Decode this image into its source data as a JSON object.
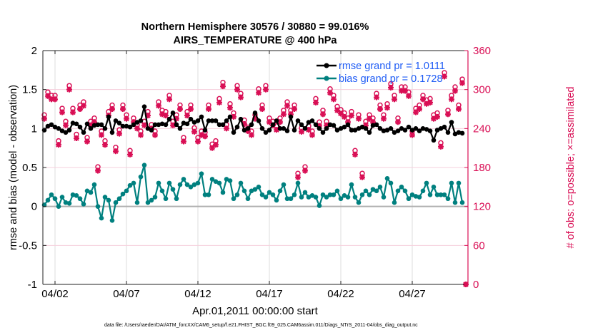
{
  "chart_data": {
    "type": "line",
    "title": [
      "Northern Hemisphere 30576 / 30880 = 99.016%",
      "AIRS_TEMPERATURE @ 400 hPa"
    ],
    "ylabel": "rmse and bias (model - observation)",
    "y2label": "# of obs: o=possible; ×=assimilated",
    "xlabel": "Apr.01,2011 00:00:00 start",
    "footer": "data file: /Users/raeder/DAI/ATM_forcXX/CAM6_setup/f.e21.FHIST_BGC.f09_025.CAM6assim.011/Diags_NTrS_2011-04/obs_diag_output.nc",
    "ylim": [
      -1,
      2
    ],
    "y2lim": [
      0,
      360
    ],
    "xlim_days": [
      0.15,
      29.9
    ],
    "yticks": [
      "-1",
      "-0.5",
      "0",
      "0.5",
      "1",
      "1.5",
      "2"
    ],
    "ytick_values": [
      -1,
      -0.5,
      0,
      0.5,
      1,
      1.5,
      2
    ],
    "y2ticks": [
      "0",
      "60",
      "120",
      "180",
      "240",
      "300",
      "360"
    ],
    "y2tick_values": [
      0,
      60,
      120,
      180,
      240,
      300,
      360
    ],
    "xticks": [
      "04/02",
      "04/07",
      "04/12",
      "04/17",
      "04/22",
      "04/27"
    ],
    "xtick_days": [
      1,
      6,
      11,
      16,
      21,
      26
    ],
    "time_step_days": 0.25,
    "legend": {
      "position": "top-right",
      "entries": [
        "rmse grand pr = 1.0111",
        "bias grand pr = 0.1728"
      ]
    },
    "colors": {
      "rmse": "#000000",
      "bias": "#00807f",
      "obs": "#d90f55",
      "legend_text": "#1f5cf5"
    },
    "series": [
      {
        "name": "rmse",
        "values": [
          0.98,
          1.03,
          1.05,
          1.02,
          1.0,
          0.97,
          0.95,
          0.98,
          1.07,
          1.06,
          1.02,
          0.95,
          1.06,
          1.0,
          1.04,
          1.05,
          1.05,
          1.0,
          1.15,
          0.95,
          1.1,
          1.07,
          1.03,
          1.03,
          1.02,
          1.05,
          1.08,
          1.1,
          1.28,
          1.0,
          0.98,
          1.05,
          1.05,
          1.06,
          1.05,
          1.12,
          1.2,
          1.05,
          1.0,
          1.07,
          1.06,
          1.12,
          1.08,
          1.1,
          1.15,
          0.98,
          1.1,
          1.1,
          1.1,
          1.05,
          1.05,
          1.1,
          1.15,
          0.95,
          1.02,
          1.12,
          0.98,
          1.0,
          1.05,
          1.2,
          1.1,
          1.0,
          0.95,
          0.98,
          1.05,
          1.1,
          1.0,
          1.0,
          0.97,
          1.15,
          0.98,
          1.1,
          1.05,
          1.0,
          1.08,
          1.1,
          1.05,
          1.0,
          0.95,
          1.0,
          1.05,
          1.04,
          0.98,
          1.0,
          1.02,
          1.05,
          0.98,
          0.98,
          1.0,
          1.02,
          1.0,
          0.95,
          1.04,
          1.05,
          1.0,
          0.97,
          0.98,
          1.0,
          0.95,
          0.97,
          1.0,
          0.98,
          1.02,
          0.98,
          1.0,
          0.97,
          1.0,
          0.99,
          0.97,
          0.85,
          0.98,
          1.0,
          1.02,
          0.95,
          1.08,
          0.93,
          0.95,
          0.94
        ]
      },
      {
        "name": "bias",
        "values": [
          0.02,
          0.08,
          0.15,
          0.1,
          0.0,
          0.12,
          0.05,
          0.04,
          0.15,
          0.14,
          0.1,
          0.03,
          0.2,
          0.18,
          0.28,
          0.0,
          -0.15,
          0.12,
          0.08,
          -0.18,
          0.05,
          0.1,
          0.16,
          0.2,
          0.27,
          0.3,
          0.05,
          0.38,
          0.53,
          0.05,
          0.08,
          0.12,
          0.3,
          0.2,
          0.1,
          0.3,
          0.22,
          0.1,
          0.28,
          0.35,
          0.28,
          0.25,
          0.28,
          0.3,
          0.42,
          0.15,
          0.15,
          0.35,
          0.32,
          0.3,
          0.18,
          0.35,
          0.33,
          0.1,
          0.15,
          0.3,
          0.2,
          0.1,
          0.2,
          0.22,
          0.25,
          0.15,
          0.12,
          0.18,
          0.15,
          0.08,
          0.2,
          0.28,
          0.1,
          0.1,
          0.15,
          0.3,
          0.12,
          0.18,
          0.12,
          0.14,
          0.12,
          0.01,
          0.15,
          0.12,
          0.15,
          0.15,
          0.2,
          0.1,
          0.14,
          0.12,
          0.28,
          0.12,
          0.05,
          0.15,
          0.2,
          0.15,
          0.22,
          0.2,
          0.25,
          0.12,
          0.36,
          0.3,
          0.05,
          0.2,
          0.25,
          0.2,
          0.1,
          0.15,
          0.13,
          0.12,
          0.2,
          0.3,
          0.15,
          0.25,
          0.15,
          0.15,
          0.15,
          0.1,
          0.3,
          0.05,
          0.3,
          0.05
        ]
      },
      {
        "name": "nobs_possible",
        "axis": "right",
        "values": [
          261,
          296,
          291,
          291,
          221,
          271,
          251,
          306,
          271,
          231,
          276,
          281,
          226,
          251,
          256,
          181,
          236,
          221,
          266,
          276,
          211,
          238,
          276,
          261,
          206,
          256,
          246,
          236,
          251,
          266,
          246,
          236,
          281,
          268,
          266,
          291,
          251,
          261,
          276,
          226,
          266,
          276,
          241,
          226,
          236,
          234,
          276,
          216,
          221,
          286,
          311,
          246,
          278,
          264,
          306,
          294,
          253,
          242,
          236,
          261,
          301,
          276,
          306,
          256,
          251,
          244,
          256,
          268,
          281,
          268,
          276,
          171,
          241,
          181,
          244,
          236,
          286,
          250,
          268,
          251,
          301,
          291,
          274,
          269,
          264,
          256,
          266,
          206,
          261,
          171,
          251,
          261,
          256,
          294,
          276,
          261,
          278,
          309,
          291,
          256,
          304,
          304,
          296,
          236,
          271,
          276,
          291,
          284,
          286,
          261,
          264,
          218,
          326,
          268,
          291,
          304,
          276,
          316,
          0
        ]
      },
      {
        "name": "nobs_assimilated",
        "axis": "right",
        "values": [
          255,
          290,
          285,
          285,
          215,
          265,
          245,
          300,
          265,
          225,
          270,
          275,
          220,
          245,
          250,
          175,
          230,
          215,
          260,
          270,
          205,
          232,
          270,
          255,
          200,
          250,
          240,
          230,
          245,
          260,
          240,
          230,
          275,
          262,
          260,
          285,
          245,
          255,
          270,
          220,
          260,
          270,
          235,
          220,
          230,
          228,
          270,
          210,
          215,
          280,
          305,
          240,
          272,
          258,
          300,
          288,
          247,
          236,
          230,
          255,
          295,
          270,
          300,
          250,
          245,
          238,
          250,
          262,
          275,
          262,
          270,
          165,
          235,
          175,
          238,
          230,
          280,
          244,
          262,
          245,
          295,
          285,
          268,
          263,
          258,
          250,
          260,
          200,
          255,
          165,
          245,
          255,
          250,
          288,
          270,
          255,
          272,
          303,
          285,
          250,
          298,
          298,
          290,
          230,
          265,
          270,
          285,
          278,
          280,
          255,
          258,
          212,
          320,
          262,
          285,
          298,
          270,
          310,
          0
        ]
      }
    ]
  }
}
